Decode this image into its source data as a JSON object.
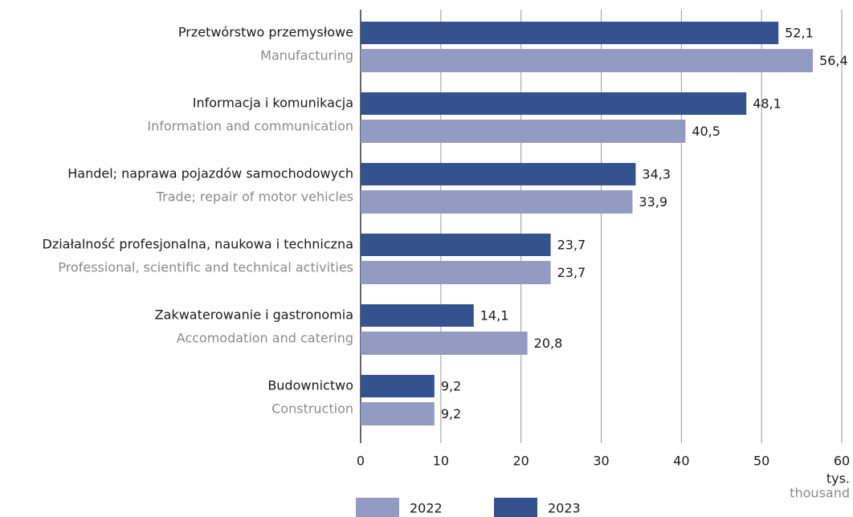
{
  "chart_data": {
    "type": "hbar",
    "categories": [
      "Przetwórstwo przemysłowe",
      "Informacja i komunikacja",
      "Handel; naprawa pojazdów samochodowych",
      "Działalność profesjonalna, naukowa i techniczna",
      "Zakwaterowanie i gastronomia",
      "Budownictwo"
    ],
    "categories_en": [
      "Manufacturing",
      "Information and communication",
      "Trade; repair of motor vehicles",
      "Professional, scientific and technical activities",
      "Accomodation and catering",
      "Construction"
    ],
    "series": [
      {
        "name": "2022",
        "color": "#939bc2",
        "values": [
          56.4,
          40.5,
          33.9,
          23.7,
          20.8,
          9.2
        ],
        "value_labels": [
          "56,4",
          "40,5",
          "33,9",
          "23,7",
          "20,8",
          "9,2"
        ]
      },
      {
        "name": "2023",
        "color": "#34538e",
        "values": [
          52.1,
          48.1,
          34.3,
          23.7,
          14.1,
          9.2
        ],
        "value_labels": [
          "52,1",
          "48,1",
          "34,3",
          "23,7",
          "14,1",
          "9,2"
        ]
      }
    ],
    "xlim": [
      0,
      60
    ],
    "xticks": [
      0,
      10,
      20,
      30,
      40,
      50,
      60
    ],
    "x_label": "tys.",
    "x_label_en": "thousand",
    "grid": true
  }
}
